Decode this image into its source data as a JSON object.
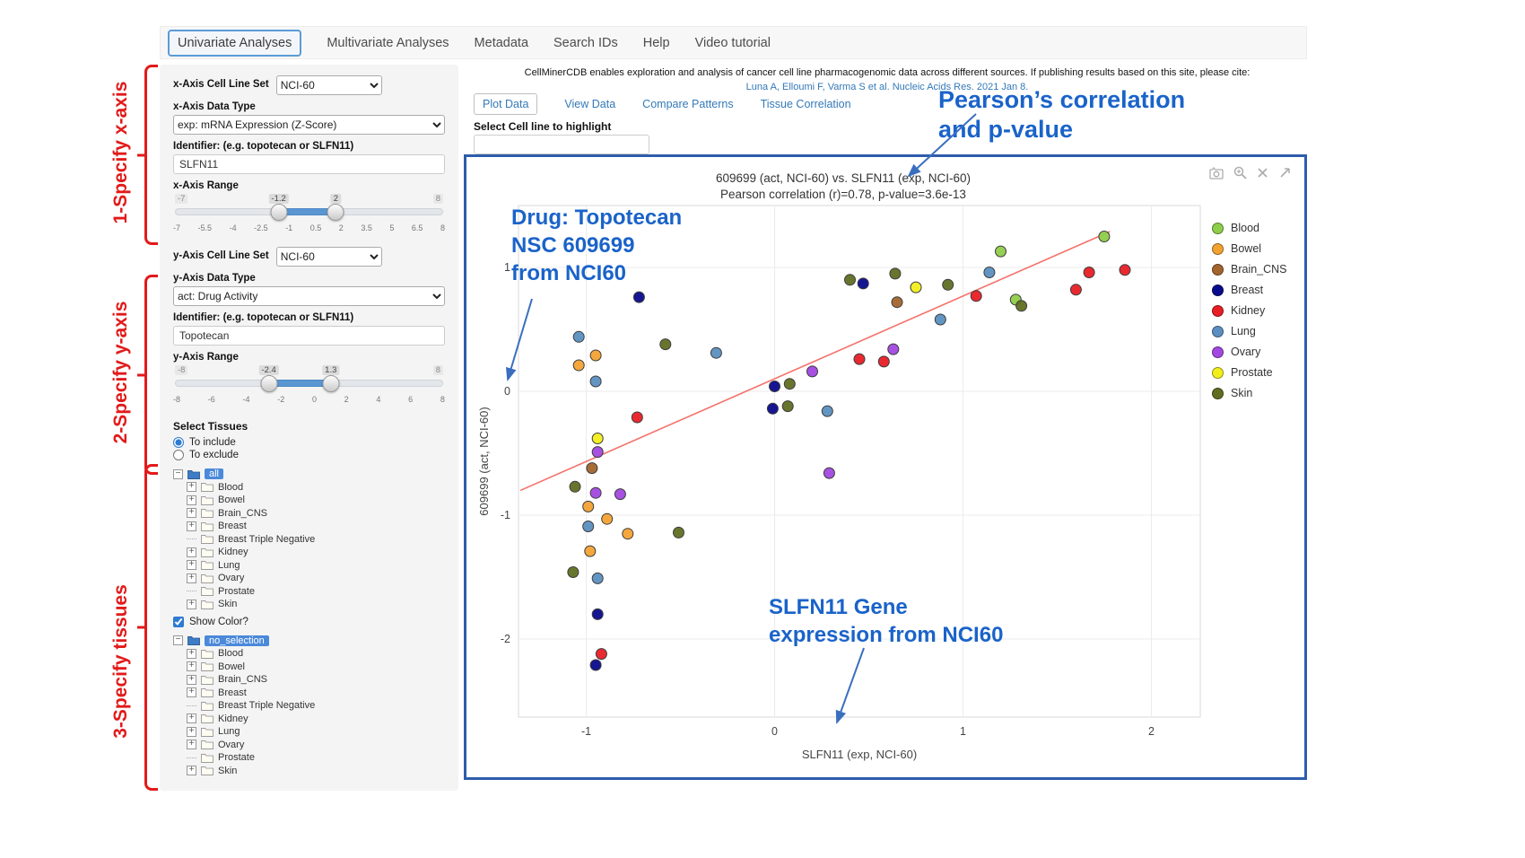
{
  "nav": {
    "tabs": [
      {
        "label": "Univariate Analyses",
        "active": true
      },
      {
        "label": "Multivariate Analyses",
        "active": false
      },
      {
        "label": "Metadata",
        "active": false
      },
      {
        "label": "Search IDs",
        "active": false
      },
      {
        "label": "Help",
        "active": false
      },
      {
        "label": "Video tutorial",
        "active": false
      }
    ]
  },
  "annotations": {
    "step1": "1-Specify x-axis",
    "step2": "2-Specify y-axis",
    "step3": "3-Specify tissues",
    "pearson": [
      "Pearson’s correlation",
      "and p-value"
    ],
    "drug": [
      "Drug: Topotecan",
      "NSC 609699",
      "from NCI60"
    ],
    "gene": [
      "SLFN11 Gene",
      "expression from NCI60"
    ],
    "note_color": "#1a63c9",
    "step_color": "#e21a1a"
  },
  "sidebar": {
    "x_axis": {
      "cell_line_set_label": "x-Axis Cell Line Set",
      "cell_line_set_value": "NCI-60",
      "data_type_label": "x-Axis Data Type",
      "data_type_value": "exp: mRNA Expression (Z-Score)",
      "identifier_label": "Identifier: (e.g. topotecan or SLFN11)",
      "identifier_value": "SLFN11",
      "range_label": "x-Axis Range",
      "range": {
        "min": -7,
        "max": 8,
        "from": -1.2,
        "to": 2,
        "min_label": "-7",
        "max_label": "8",
        "from_label": "-1.2",
        "to_label": "2",
        "ticks": [
          "-7",
          "-5.5",
          "-4",
          "-2.5",
          "-1",
          "0.5",
          "2",
          "3.5",
          "5",
          "6.5",
          "8"
        ]
      }
    },
    "y_axis": {
      "cell_line_set_label": "y-Axis Cell Line Set",
      "cell_line_set_value": "NCI-60",
      "data_type_label": "y-Axis Data Type",
      "data_type_value": "act: Drug Activity",
      "identifier_label": "Identifier: (e.g. topotecan or SLFN11)",
      "identifier_value": "Topotecan",
      "range_label": "y-Axis Range",
      "range": {
        "min": -8,
        "max": 8,
        "from": -2.4,
        "to": 1.3,
        "min_label": "-8",
        "max_label": "8",
        "from_label": "-2.4",
        "to_label": "1.3",
        "ticks": [
          "-8",
          "-6",
          "-4",
          "-2",
          "0",
          "2",
          "4",
          "6",
          "8"
        ]
      }
    },
    "tissues": {
      "label": "Select Tissues",
      "radio_include": "To include",
      "radio_exclude": "To exclude",
      "include_selected": true,
      "show_color_label": "Show Color?",
      "show_color_checked": true,
      "include_root": "all",
      "exclude_root": "no_selection",
      "items": [
        {
          "label": "Blood",
          "expandable": true
        },
        {
          "label": "Bowel",
          "expandable": true
        },
        {
          "label": "Brain_CNS",
          "expandable": true
        },
        {
          "label": "Breast",
          "expandable": true
        },
        {
          "label": "Breast Triple Negative",
          "expandable": false
        },
        {
          "label": "Kidney",
          "expandable": true
        },
        {
          "label": "Lung",
          "expandable": true
        },
        {
          "label": "Ovary",
          "expandable": true
        },
        {
          "label": "Prostate",
          "expandable": false
        },
        {
          "label": "Skin",
          "expandable": true
        }
      ]
    }
  },
  "main": {
    "citation_line1": "CellMinerCDB enables exploration and analysis of cancer cell line pharmacogenomic data across different sources. If publishing results based on this site, please cite:",
    "citation_link": "Luna A, Elloumi F, Varma S et al. Nucleic Acids Res. 2021 Jan 8.",
    "tabs": [
      {
        "label": "Plot Data",
        "active": true
      },
      {
        "label": "View Data",
        "active": false
      },
      {
        "label": "Compare Patterns",
        "active": false
      },
      {
        "label": "Tissue Correlation",
        "active": false
      }
    ],
    "highlight_label": "Select Cell line to highlight",
    "highlight_value": "",
    "modebar_icons": [
      "camera-icon",
      "zoom-in-icon",
      "close-icon",
      "pan-arrow-icon"
    ]
  },
  "chart_data": {
    "type": "scatter",
    "title": "609699 (act, NCI-60) vs. SLFN11 (exp, NCI-60)",
    "subtitle": "Pearson correlation (r)=0.78, p-value=3.6e-13",
    "xlabel": "SLFN11 (exp, NCI-60)",
    "ylabel": "609699 (act, NCI-60)",
    "xlim": [
      -1.36,
      2.26
    ],
    "ylim": [
      -2.63,
      1.5
    ],
    "xticks": [
      -1,
      0,
      1,
      2
    ],
    "yticks": [
      -2,
      -1,
      0,
      1
    ],
    "grid": true,
    "legend_position": "right",
    "marker_outline": "#3c3c3c",
    "regression_line": {
      "x1": -1.35,
      "y1": -0.8,
      "x2": 1.78,
      "y2": 1.29,
      "color": "#f4726a"
    },
    "series": [
      {
        "name": "Blood",
        "color": "#8fce4a",
        "points": [
          [
            1.2,
            1.13
          ],
          [
            1.75,
            1.25
          ],
          [
            1.28,
            0.74
          ]
        ]
      },
      {
        "name": "Bowel",
        "color": "#f3a232",
        "points": [
          [
            -0.95,
            0.29
          ],
          [
            -1.04,
            0.21
          ],
          [
            -0.99,
            -0.93
          ],
          [
            -0.89,
            -1.03
          ],
          [
            -0.78,
            -1.15
          ],
          [
            -0.98,
            -1.29
          ]
        ]
      },
      {
        "name": "Brain_CNS",
        "color": "#a3642e",
        "points": [
          [
            0.65,
            0.72
          ],
          [
            -0.97,
            -0.62
          ]
        ]
      },
      {
        "name": "Breast",
        "color": "#0a0a8c",
        "points": [
          [
            -0.72,
            0.76
          ],
          [
            0.47,
            0.87
          ],
          [
            0.0,
            0.04
          ],
          [
            -0.01,
            -0.14
          ],
          [
            -0.94,
            -1.8
          ],
          [
            -0.95,
            -2.21
          ]
        ]
      },
      {
        "name": "Kidney",
        "color": "#e81e25",
        "points": [
          [
            1.67,
            0.96
          ],
          [
            1.86,
            0.98
          ],
          [
            1.07,
            0.77
          ],
          [
            1.6,
            0.82
          ],
          [
            0.45,
            0.26
          ],
          [
            0.58,
            0.24
          ],
          [
            -0.73,
            -0.21
          ],
          [
            -0.92,
            -2.12
          ]
        ]
      },
      {
        "name": "Lung",
        "color": "#5b8fc0",
        "points": [
          [
            -1.04,
            0.44
          ],
          [
            -0.31,
            0.31
          ],
          [
            -0.95,
            0.08
          ],
          [
            0.88,
            0.58
          ],
          [
            1.14,
            0.96
          ],
          [
            0.28,
            -0.16
          ],
          [
            -0.99,
            -1.09
          ],
          [
            -0.94,
            -1.51
          ]
        ]
      },
      {
        "name": "Ovary",
        "color": "#a248e0",
        "points": [
          [
            0.2,
            0.16
          ],
          [
            0.63,
            0.34
          ],
          [
            -0.94,
            -0.49
          ],
          [
            0.29,
            -0.66
          ],
          [
            -0.95,
            -0.82
          ],
          [
            -0.82,
            -0.83
          ]
        ]
      },
      {
        "name": "Prostate",
        "color": "#f2ee1b",
        "points": [
          [
            0.75,
            0.84
          ],
          [
            -0.94,
            -0.38
          ]
        ]
      },
      {
        "name": "Skin",
        "color": "#606e22",
        "points": [
          [
            0.4,
            0.9
          ],
          [
            0.64,
            0.95
          ],
          [
            0.92,
            0.86
          ],
          [
            1.31,
            0.69
          ],
          [
            -0.58,
            0.38
          ],
          [
            0.08,
            0.06
          ],
          [
            0.07,
            -0.12
          ],
          [
            -1.06,
            -0.77
          ],
          [
            -0.51,
            -1.14
          ],
          [
            -1.07,
            -1.46
          ]
        ]
      }
    ]
  }
}
